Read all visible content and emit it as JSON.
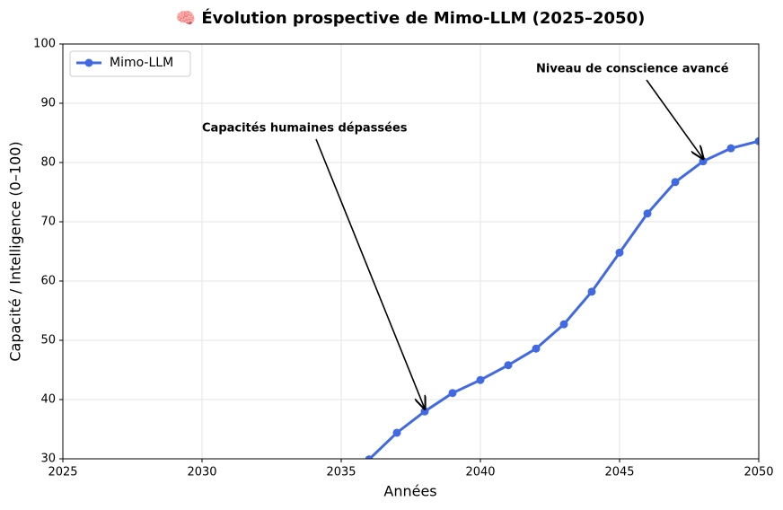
{
  "chart_data": {
    "type": "line",
    "title": "🧠 Évolution prospective de Mimo-LLM (2025–2050)",
    "x_label": "Années",
    "y_label": "Capacité / Intelligence (0–100)",
    "x": [
      2036,
      2037,
      2038,
      2039,
      2040,
      2041,
      2042,
      2043,
      2044,
      2045,
      2046,
      2047,
      2048,
      2049,
      2050
    ],
    "series": [
      {
        "name": "Mimo-LLM",
        "color": "#4169e1",
        "values": [
          29.9,
          34.4,
          38.0,
          41.1,
          43.3,
          45.8,
          48.6,
          52.7,
          58.2,
          64.8,
          71.4,
          76.7,
          80.2,
          82.4,
          83.6
        ]
      }
    ],
    "xlim": [
      2025,
      2050
    ],
    "xticks": [
      2025,
      2030,
      2035,
      2040,
      2045,
      2050
    ],
    "ylim": [
      30,
      100
    ],
    "yticks": [
      30,
      40,
      50,
      60,
      70,
      80,
      90,
      100
    ],
    "grid": true,
    "legend": "upper-left",
    "annotations": [
      {
        "text": "Capacités humaines dépassées",
        "x": 2038,
        "y": 38.0
      },
      {
        "text": "Niveau de conscience avancé",
        "x": 2048,
        "y": 80.2
      }
    ]
  }
}
